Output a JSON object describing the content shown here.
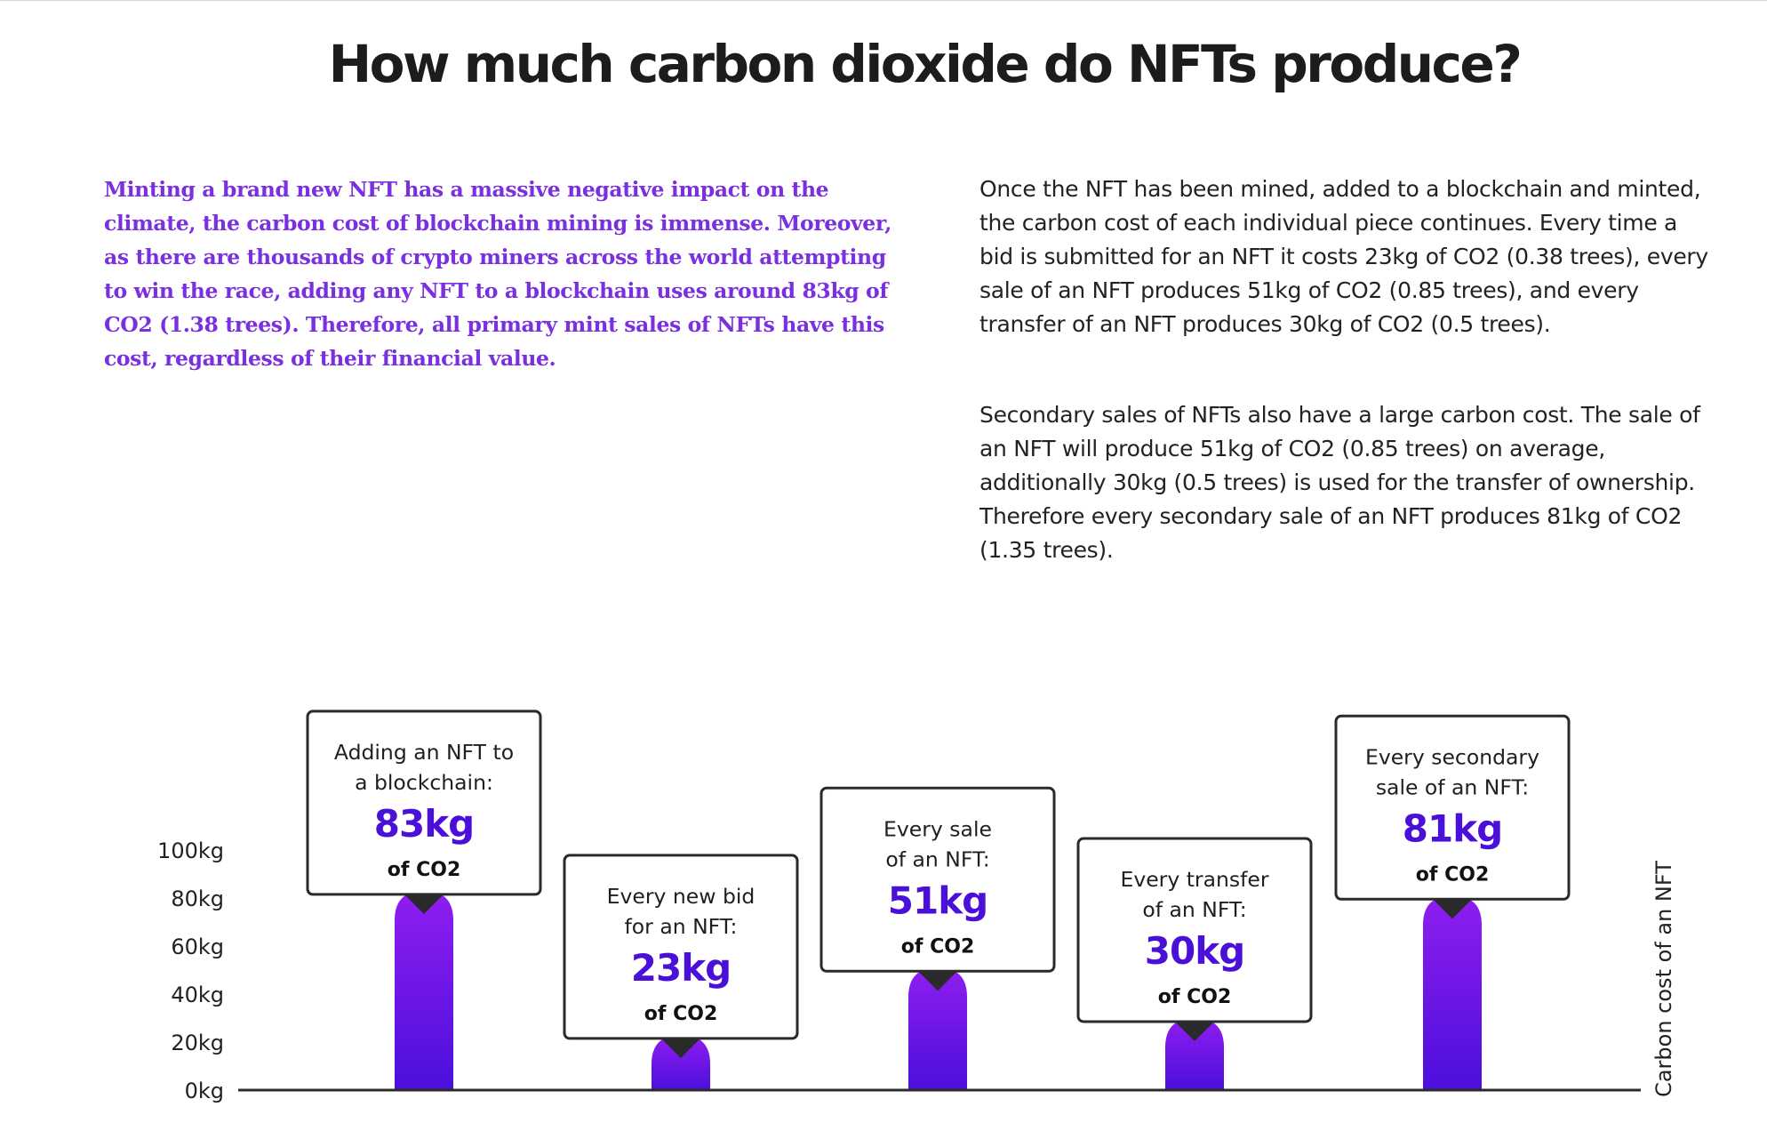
{
  "title": "How much carbon dioxide do NFTs produce?",
  "intro": "Minting a brand new NFT has a massive negative impact on the climate, the carbon cost of blockchain mining is immense. Moreover, as there are thousands of crypto miners across the world attempting to win the race, adding any NFT to a blockchain uses around 83kg of CO2 (1.38 trees). Therefore, all primary mint sales of NFTs have this cost, regardless of their financial value.",
  "paragraphs": [
    "Once the NFT has been mined, added to a blockchain and minted, the carbon cost of each individual piece continues. Every time a bid is submitted for an NFT it costs 23kg of CO2 (0.38 trees), every sale of an NFT produces 51kg of CO2 (0.85 trees), and every transfer of an NFT produces 30kg of CO2 (0.5 trees).",
    "Secondary sales of NFTs also have a large carbon cost. The sale of an NFT will produce 51kg of CO2 (0.85 trees) on average, additionally 30kg (0.5 trees) is used for the transfer of ownership. Therefore every secondary sale of an NFT produces 81kg of CO2 (1.35 trees)."
  ],
  "colors": {
    "accent": "#7a2fe0",
    "bar_top": "#8f1ef0",
    "bar_bottom": "#4b0fdc",
    "value_text": "#4a0fd8"
  },
  "chart_data": {
    "type": "bar",
    "ylabel": "Carbon cost of an NFT",
    "xlabel": "",
    "ylim": [
      0,
      100
    ],
    "yticks": [
      0,
      20,
      40,
      60,
      80,
      100
    ],
    "ytick_labels": [
      "0kg",
      "20kg",
      "40kg",
      "60kg",
      "80kg",
      "100kg"
    ],
    "categories": [
      "Adding an NFT to a blockchain:",
      "Every new bid for an NFT:",
      "Every sale of an NFT:",
      "Every transfer of an NFT:",
      "Every secondary sale of an NFT:"
    ],
    "values": [
      83,
      23,
      51,
      30,
      81
    ],
    "annotations": [
      {
        "lines": [
          "Adding an NFT to",
          "a blockchain:"
        ],
        "value": "83kg",
        "unit": "of CO2"
      },
      {
        "lines": [
          "Every new bid",
          "for an NFT:"
        ],
        "value": "23kg",
        "unit": "of CO2"
      },
      {
        "lines": [
          "Every sale",
          "of an NFT:"
        ],
        "value": "51kg",
        "unit": "of CO2"
      },
      {
        "lines": [
          "Every transfer",
          "of an NFT:"
        ],
        "value": "30kg",
        "unit": "of CO2"
      },
      {
        "lines": [
          "Every secondary",
          "sale of an NFT:"
        ],
        "value": "81kg",
        "unit": "of CO2"
      }
    ],
    "grid": false,
    "legend": "none"
  }
}
